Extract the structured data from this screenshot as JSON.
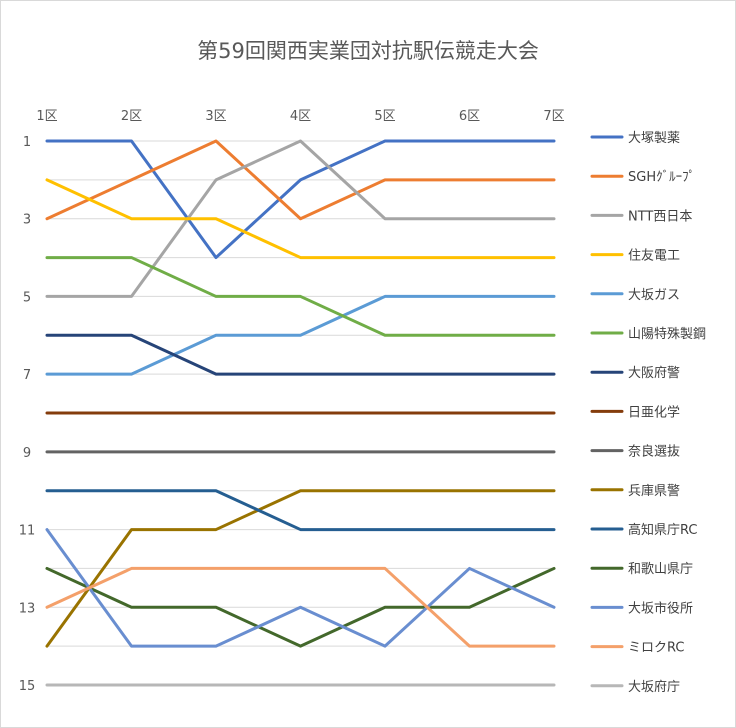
{
  "chart_data": {
    "type": "line",
    "title": "第59回関西実業団対抗駅伝競走大会",
    "categories": [
      "1区",
      "2区",
      "3区",
      "4区",
      "5区",
      "6区",
      "7区"
    ],
    "y_tick_labels": [
      "1",
      "3",
      "5",
      "7",
      "9",
      "11",
      "13",
      "15"
    ],
    "ylim": [
      1,
      15
    ],
    "y_inverted": true,
    "grid": true,
    "legend_position": "right",
    "series": [
      {
        "name": "大塚製薬",
        "color": "#4472c4",
        "values": [
          1,
          1,
          4,
          2,
          1,
          1,
          1
        ]
      },
      {
        "name": "SGHｸﾞﾙｰﾌﾟ",
        "color": "#ed7d31",
        "values": [
          3,
          2,
          1,
          3,
          2,
          2,
          2
        ]
      },
      {
        "name": "NTT西日本",
        "color": "#a5a5a5",
        "values": [
          5,
          5,
          2,
          1,
          3,
          3,
          3
        ]
      },
      {
        "name": "住友電工",
        "color": "#ffc000",
        "values": [
          2,
          3,
          3,
          4,
          4,
          4,
          4
        ]
      },
      {
        "name": "大坂ガス",
        "color": "#5b9bd5",
        "values": [
          7,
          7,
          6,
          6,
          5,
          5,
          5
        ]
      },
      {
        "name": "山陽特殊製鋼",
        "color": "#70ad47",
        "values": [
          4,
          4,
          5,
          5,
          6,
          6,
          6
        ]
      },
      {
        "name": "大阪府警",
        "color": "#264478",
        "values": [
          6,
          6,
          7,
          7,
          7,
          7,
          7
        ]
      },
      {
        "name": "日亜化学",
        "color": "#843c0c",
        "values": [
          8,
          8,
          8,
          8,
          8,
          8,
          8
        ]
      },
      {
        "name": "奈良選抜",
        "color": "#636363",
        "values": [
          9,
          9,
          9,
          9,
          9,
          9,
          9
        ]
      },
      {
        "name": "兵庫県警",
        "color": "#997300",
        "values": [
          14,
          11,
          11,
          10,
          10,
          10,
          10
        ]
      },
      {
        "name": "高知県庁RC",
        "color": "#255e91",
        "values": [
          10,
          10,
          10,
          11,
          11,
          11,
          11
        ]
      },
      {
        "name": "和歌山県庁",
        "color": "#43682b",
        "values": [
          12,
          13,
          13,
          14,
          13,
          13,
          12
        ]
      },
      {
        "name": "大坂市役所",
        "color": "#698ed0",
        "values": [
          11,
          14,
          14,
          13,
          14,
          12,
          13
        ]
      },
      {
        "name": "ミロクRC",
        "color": "#f4a06a",
        "values": [
          13,
          12,
          12,
          12,
          12,
          14,
          14
        ]
      },
      {
        "name": "大坂府庁",
        "color": "#b7b7b7",
        "values": [
          15,
          15,
          15,
          15,
          15,
          15,
          15
        ]
      }
    ]
  }
}
